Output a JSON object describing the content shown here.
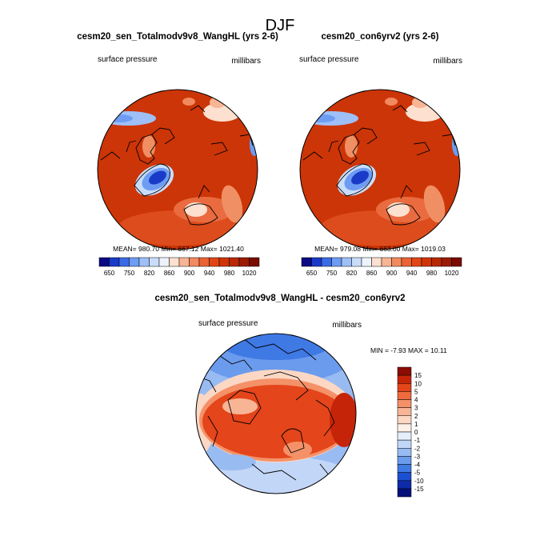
{
  "figure": {
    "title": "DJF"
  },
  "chart_data": [
    {
      "type": "contour-map",
      "projection": "north-polar-stereographic",
      "title": "cesm20_sen_Totalmodv9v8_WangHL (yrs 2-6)",
      "left_label": "surface pressure",
      "right_label": "millibars",
      "stats_text": "MEAN= 980.70  Min= 667.12  Max= 1021.40",
      "stats": {
        "mean": 980.7,
        "min": 667.12,
        "max": 1021.4
      },
      "colorbar": {
        "orientation": "horizontal",
        "tick_labels": [
          "650",
          "750",
          "820",
          "860",
          "900",
          "940",
          "980",
          "1020"
        ],
        "colors": [
          "#0a0a84",
          "#1a3bc8",
          "#3a6be6",
          "#6d9cf2",
          "#9ec0f7",
          "#c9ddfa",
          "#ecf3fd",
          "#fde0cf",
          "#f8b593",
          "#f2895f",
          "#eb6234",
          "#e14616",
          "#cf3406",
          "#b82803",
          "#9c1a03",
          "#7a0b01"
        ]
      }
    },
    {
      "type": "contour-map",
      "projection": "north-polar-stereographic",
      "title": "cesm20_con6yrv2 (yrs 2-6)",
      "left_label": "surface pressure",
      "right_label": "millibars",
      "stats_text": "MEAN= 979.08  Min= 663.00  Max= 1019.03",
      "stats": {
        "mean": 979.08,
        "min": 663.0,
        "max": 1019.03
      },
      "colorbar": {
        "orientation": "horizontal",
        "tick_labels": [
          "650",
          "750",
          "820",
          "860",
          "900",
          "940",
          "980",
          "1020"
        ],
        "colors": [
          "#0a0a84",
          "#1a3bc8",
          "#3a6be6",
          "#6d9cf2",
          "#9ec0f7",
          "#c9ddfa",
          "#ecf3fd",
          "#fde0cf",
          "#f8b593",
          "#f2895f",
          "#eb6234",
          "#e14616",
          "#cf3406",
          "#b82803",
          "#9c1a03",
          "#7a0b01"
        ]
      }
    },
    {
      "type": "contour-map",
      "projection": "north-polar-stereographic",
      "title": "cesm20_sen_Totalmodv9v8_WangHL - cesm20_con6yrv2",
      "left_label": "surface pressure",
      "right_label": "millibars",
      "stats_text": "MIN =  -7.93 MAX =  10.11",
      "stats": {
        "min": -7.93,
        "max": 10.11
      },
      "colorbar": {
        "orientation": "vertical",
        "tick_labels": [
          "15",
          "10",
          "5",
          "4",
          "3",
          "2",
          "1",
          "0",
          "-1",
          "-2",
          "-3",
          "-4",
          "-5",
          "-10",
          "-15"
        ],
        "colors": [
          "#8a0c03",
          "#c62408",
          "#e4451a",
          "#ef6a3c",
          "#f49168",
          "#f8b596",
          "#fbd7c4",
          "#fdf0e8",
          "#e5eefb",
          "#c2d6f7",
          "#98bbf2",
          "#6b9bed",
          "#3f79e4",
          "#1c4fd1",
          "#0d2aa8",
          "#06107a"
        ]
      }
    }
  ]
}
